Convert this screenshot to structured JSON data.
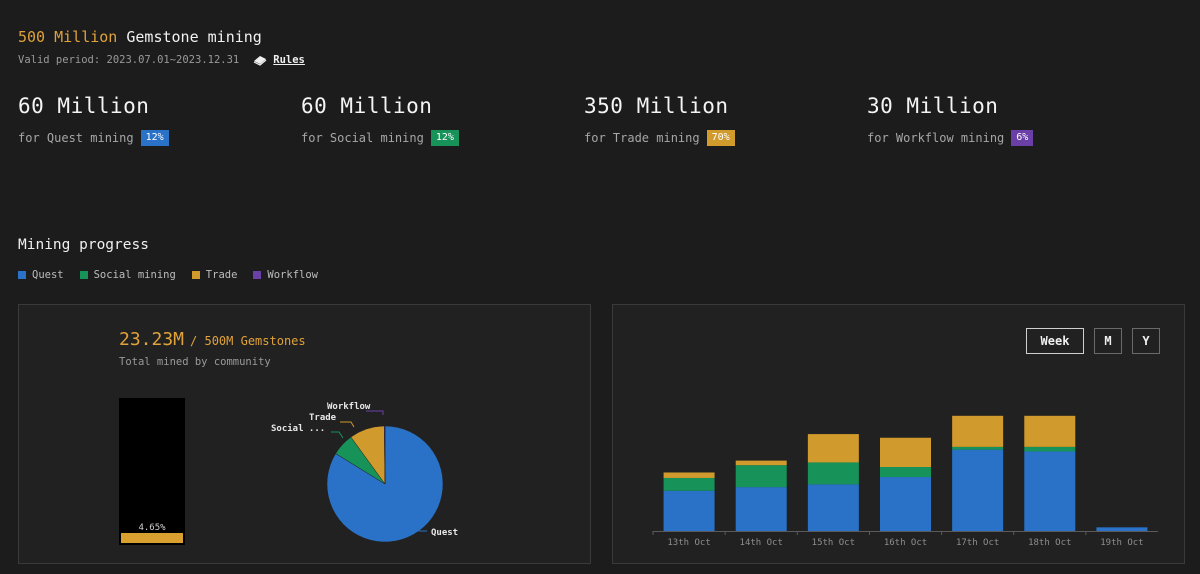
{
  "header": {
    "title_accent": "500 Million",
    "title_rest": " Gemstone mining",
    "valid_period": "Valid period: 2023.07.01~2023.12.31",
    "rules_label": "Rules"
  },
  "stats": [
    {
      "amount": "60 Million",
      "label": "for Quest mining",
      "pct": "12%",
      "color": "#2a72c8"
    },
    {
      "amount": "60 Million",
      "label": "for Social mining",
      "pct": "12%",
      "color": "#17935a"
    },
    {
      "amount": "350 Million",
      "label": "for Trade mining",
      "pct": "70%",
      "color": "#d09a2c"
    },
    {
      "amount": "30 Million",
      "label": "for Workflow mining",
      "pct": "6%",
      "color": "#6b3fa8"
    }
  ],
  "progress": {
    "title": "Mining progress",
    "legend": [
      {
        "label": "Quest",
        "color": "#2a72c8"
      },
      {
        "label": "Social mining",
        "color": "#17935a"
      },
      {
        "label": "Trade",
        "color": "#d09a2c"
      },
      {
        "label": "Workflow",
        "color": "#6b3fa8"
      }
    ],
    "mined_value": "23.23M",
    "mined_total": "/ 500M Gemstones",
    "mined_caption": "Total mined by community",
    "mined_percent_label": "4.65%",
    "mined_fraction": 0.0465
  },
  "pie": {
    "labels": {
      "workflow": "Workflow",
      "trade": "Trade",
      "social": "Social ...",
      "quest": "Quest"
    }
  },
  "range": {
    "week": "Week",
    "month": "M",
    "year": "Y",
    "selected": "Week"
  },
  "chart_data": [
    {
      "type": "pie",
      "categories": [
        "Quest",
        "Social mining",
        "Trade",
        "Workflow"
      ],
      "values": [
        83.8,
        6.2,
        9.8,
        0.2
      ],
      "colors": [
        "#2a72c8",
        "#17935a",
        "#d09a2c",
        "#6b3fa8"
      ]
    },
    {
      "type": "bar",
      "stacked": true,
      "categories": [
        "13th Oct",
        "14th Oct",
        "15th Oct",
        "16th Oct",
        "17th Oct",
        "18th Oct",
        "19th Oct"
      ],
      "series": [
        {
          "name": "Quest",
          "color": "#2a72c8",
          "values": [
            44,
            48,
            51,
            59,
            89,
            87,
            4
          ]
        },
        {
          "name": "Social mining",
          "color": "#17935a",
          "values": [
            14,
            24,
            24,
            11,
            3,
            5,
            0
          ]
        },
        {
          "name": "Trade",
          "color": "#d09a2c",
          "values": [
            6,
            5,
            31,
            32,
            34,
            34,
            0
          ]
        },
        {
          "name": "Workflow",
          "color": "#6b3fa8",
          "values": [
            0,
            0,
            0,
            0,
            0,
            0,
            0
          ]
        }
      ],
      "ylim": [
        0,
        140
      ]
    }
  ]
}
